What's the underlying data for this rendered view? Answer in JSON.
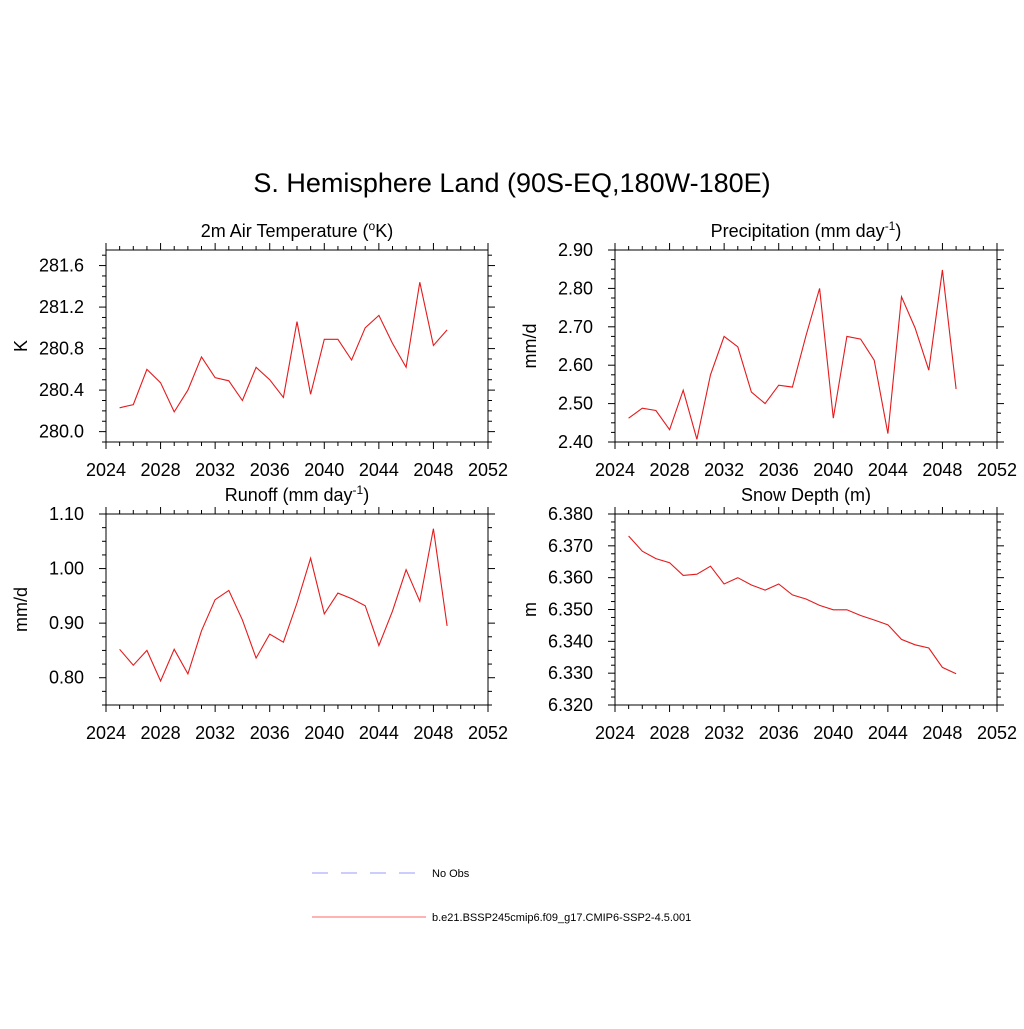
{
  "figure": {
    "title": "S. Hemisphere Land (90S-EQ,180W-180E)"
  },
  "legend": {
    "placement": "bottom-center",
    "items": [
      {
        "label": "No Obs",
        "color": "#9999ff",
        "style": "dashed"
      },
      {
        "label": "b.e21.BSSP245cmip6.f09_g17.CMIP6-SSP2-4.5.001",
        "color": "#ff6666",
        "style": "solid"
      }
    ]
  },
  "chart_data": [
    {
      "type": "line",
      "title": "2m Air Temperature (",
      "title_sup": "o",
      "title_after": "K)",
      "ylabel": "K",
      "xlim": [
        2024,
        2052
      ],
      "ylim": [
        279.9,
        281.75
      ],
      "xticks": [
        "2024",
        "2028",
        "2032",
        "2036",
        "2040",
        "2044",
        "2048",
        "2052"
      ],
      "yticks": [
        "280.0",
        "280.4",
        "280.8",
        "281.2",
        "281.6"
      ],
      "grid": false,
      "color": "#e41a1c",
      "x": [
        2025,
        2026,
        2027,
        2028,
        2029,
        2030,
        2031,
        2032,
        2033,
        2034,
        2035,
        2036,
        2037,
        2038,
        2039,
        2040,
        2041,
        2042,
        2043,
        2044,
        2045,
        2046,
        2047,
        2048,
        2049
      ],
      "y": [
        280.23,
        280.26,
        280.6,
        280.47,
        280.19,
        280.4,
        280.72,
        280.52,
        280.49,
        280.3,
        280.62,
        280.5,
        280.33,
        281.06,
        280.36,
        280.89,
        280.89,
        280.69,
        281.0,
        281.12,
        280.85,
        280.62,
        281.44,
        280.83,
        280.98
      ]
    },
    {
      "type": "line",
      "title": "Precipitation (mm day",
      "title_sup": "-1",
      "title_after": ")",
      "ylabel": "mm/d",
      "xlim": [
        2024,
        2052
      ],
      "ylim": [
        2.4,
        2.9
      ],
      "xticks": [
        "2024",
        "2028",
        "2032",
        "2036",
        "2040",
        "2044",
        "2048",
        "2052"
      ],
      "yticks": [
        "2.40",
        "2.50",
        "2.60",
        "2.70",
        "2.80",
        "2.90"
      ],
      "grid": false,
      "color": "#e41a1c",
      "x": [
        2025,
        2026,
        2027,
        2028,
        2029,
        2030,
        2031,
        2032,
        2033,
        2034,
        2035,
        2036,
        2037,
        2038,
        2039,
        2040,
        2041,
        2042,
        2043,
        2044,
        2045,
        2046,
        2047,
        2048,
        2049
      ],
      "y": [
        2.462,
        2.488,
        2.482,
        2.432,
        2.535,
        2.407,
        2.575,
        2.675,
        2.648,
        2.53,
        2.5,
        2.548,
        2.543,
        2.677,
        2.8,
        2.462,
        2.675,
        2.668,
        2.613,
        2.422,
        2.778,
        2.697,
        2.587,
        2.848,
        2.538
      ]
    },
    {
      "type": "line",
      "title": "Runoff (mm day",
      "title_sup": "-1",
      "title_after": ")",
      "ylabel": "mm/d",
      "xlim": [
        2024,
        2052
      ],
      "ylim": [
        0.75,
        1.1
      ],
      "xticks": [
        "2024",
        "2028",
        "2032",
        "2036",
        "2040",
        "2044",
        "2048",
        "2052"
      ],
      "yticks": [
        "0.80",
        "0.90",
        "1.00",
        "1.10"
      ],
      "grid": false,
      "color": "#e41a1c",
      "x": [
        2025,
        2026,
        2027,
        2028,
        2029,
        2030,
        2031,
        2032,
        2033,
        2034,
        2035,
        2036,
        2037,
        2038,
        2039,
        2040,
        2041,
        2042,
        2043,
        2044,
        2045,
        2046,
        2047,
        2048,
        2049
      ],
      "y": [
        0.852,
        0.823,
        0.85,
        0.794,
        0.852,
        0.807,
        0.886,
        0.943,
        0.96,
        0.906,
        0.836,
        0.88,
        0.865,
        0.937,
        1.019,
        0.917,
        0.955,
        0.945,
        0.932,
        0.859,
        0.922,
        0.998,
        0.94,
        1.073,
        0.895
      ]
    },
    {
      "type": "line",
      "title": "Snow Depth (m)",
      "title_sup": "",
      "title_after": "",
      "ylabel": "m",
      "xlim": [
        2024,
        2052
      ],
      "ylim": [
        6.32,
        6.38
      ],
      "xticks": [
        "2024",
        "2028",
        "2032",
        "2036",
        "2040",
        "2044",
        "2048",
        "2052"
      ],
      "yticks": [
        "6.320",
        "6.330",
        "6.340",
        "6.350",
        "6.360",
        "6.370",
        "6.380"
      ],
      "grid": false,
      "color": "#e41a1c",
      "x": [
        2025,
        2026,
        2027,
        2028,
        2029,
        2030,
        2031,
        2032,
        2033,
        2034,
        2035,
        2036,
        2037,
        2038,
        2039,
        2040,
        2041,
        2042,
        2043,
        2044,
        2045,
        2046,
        2047,
        2048,
        2049
      ],
      "y": [
        6.3731,
        6.3683,
        6.366,
        6.3647,
        6.3607,
        6.3611,
        6.3636,
        6.358,
        6.36,
        6.3577,
        6.3561,
        6.358,
        6.3546,
        6.3533,
        6.3513,
        6.3499,
        6.3499,
        6.3481,
        6.3467,
        6.3452,
        6.3406,
        6.3389,
        6.3379,
        6.3318,
        6.3298
      ]
    }
  ]
}
